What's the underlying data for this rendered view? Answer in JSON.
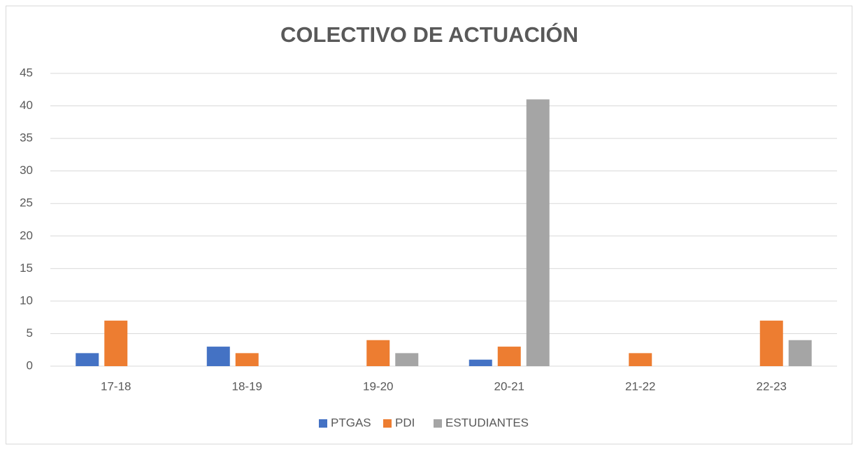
{
  "chart_data": {
    "type": "bar",
    "title": "COLECTIVO DE ACTUACIÓN",
    "categories": [
      "17-18",
      "18-19",
      "19-20",
      "20-21",
      "21-22",
      "22-23"
    ],
    "series": [
      {
        "name": "PTGAS",
        "color": "#4472c4",
        "values": [
          2,
          3,
          0,
          1,
          0,
          0
        ]
      },
      {
        "name": "PDI",
        "color": "#ed7d31",
        "values": [
          7,
          2,
          4,
          3,
          2,
          7
        ]
      },
      {
        "name": "ESTUDIANTES",
        "color": "#a5a5a5",
        "values": [
          0,
          0,
          2,
          41,
          0,
          4
        ]
      }
    ],
    "ylim": [
      0,
      45
    ],
    "yticks": [
      0,
      5,
      10,
      15,
      20,
      25,
      30,
      35,
      40,
      45
    ],
    "grid": true,
    "legend": "bottom"
  }
}
